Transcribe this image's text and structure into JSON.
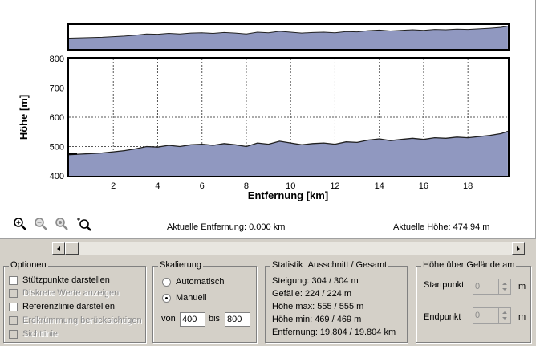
{
  "chart_data": [
    {
      "type": "area",
      "role": "overview",
      "x": [
        0,
        0.5,
        1,
        1.5,
        2,
        2.5,
        3,
        3.5,
        4,
        4.5,
        5,
        5.5,
        6,
        6.5,
        7,
        7.5,
        8,
        8.5,
        9,
        9.5,
        10,
        10.5,
        11,
        11.5,
        12,
        12.5,
        13,
        13.5,
        14,
        14.5,
        15,
        15.5,
        16,
        16.5,
        17,
        17.5,
        18,
        18.5,
        19,
        19.5,
        19.8
      ],
      "y": [
        472,
        474,
        476,
        478,
        482,
        486,
        492,
        500,
        498,
        504,
        500,
        506,
        508,
        504,
        510,
        506,
        500,
        512,
        508,
        518,
        512,
        506,
        510,
        512,
        508,
        516,
        514,
        522,
        526,
        520,
        524,
        528,
        524,
        530,
        528,
        532,
        530,
        534,
        538,
        544,
        552
      ],
      "ylim": [
        400,
        560
      ],
      "xlim": [
        0,
        19.804
      ]
    },
    {
      "type": "area",
      "role": "main",
      "xlabel": "Entfernung [km]",
      "ylabel": "Höhe [m]",
      "x": [
        0,
        0.5,
        1,
        1.5,
        2,
        2.5,
        3,
        3.5,
        4,
        4.5,
        5,
        5.5,
        6,
        6.5,
        7,
        7.5,
        8,
        8.5,
        9,
        9.5,
        10,
        10.5,
        11,
        11.5,
        12,
        12.5,
        13,
        13.5,
        14,
        14.5,
        15,
        15.5,
        16,
        16.5,
        17,
        17.5,
        18,
        18.5,
        19,
        19.5,
        19.8
      ],
      "y": [
        472,
        474,
        476,
        478,
        482,
        486,
        492,
        500,
        498,
        504,
        500,
        506,
        508,
        504,
        510,
        506,
        500,
        512,
        508,
        518,
        512,
        506,
        510,
        512,
        508,
        516,
        514,
        522,
        526,
        520,
        524,
        528,
        524,
        530,
        528,
        532,
        530,
        534,
        538,
        544,
        552
      ],
      "xlim": [
        0,
        19.804
      ],
      "ylim": [
        400,
        800
      ],
      "xticks": [
        2,
        4,
        6,
        8,
        10,
        12,
        14,
        16,
        18
      ],
      "yticks": [
        400,
        500,
        600,
        700,
        800
      ],
      "grid": true,
      "reference_line_y": 474.94,
      "fill_color": "#9098c0",
      "line_color": "#202020"
    }
  ],
  "status": {
    "entfernung": "Aktuelle Entfernung: 0.000 km",
    "hoehe": "Aktuelle Höhe: 474.94 m"
  },
  "toolbar": {
    "icons": [
      "zoom-in-icon",
      "zoom-out-icon",
      "zoom-reset-icon",
      "zoom-window-icon"
    ]
  },
  "optionen": {
    "title": "Optionen",
    "items": [
      {
        "label": "Stützpunkte darstellen",
        "enabled": true
      },
      {
        "label": "Diskrete Werte anzeigen",
        "enabled": false
      },
      {
        "label": "Referenzlinie darstellen",
        "enabled": true
      },
      {
        "label": "Erdkrümmung berücksichtigen",
        "enabled": false
      },
      {
        "label": "Sichtlinie",
        "enabled": false
      }
    ]
  },
  "skalierung": {
    "title": "Skalierung",
    "auto_label": "Automatisch",
    "manual_label": "Manuell",
    "selected": "Manuell",
    "von_label": "von",
    "von_value": "400",
    "bis_label": "bis",
    "bis_value": "800"
  },
  "statistik": {
    "title": "Statistik",
    "subtitle": "Ausschnitt / Gesamt",
    "lines": [
      "Steigung: 304 / 304 m",
      "Gefälle: 224 / 224 m",
      "Höhe max: 555 / 555 m",
      "Höhe min: 469 / 469 m",
      "Entfernung: 19.804 / 19.804 km"
    ]
  },
  "gelaende": {
    "title": "Höhe über Gelände am",
    "start_label": "Startpunkt",
    "start_value": "0",
    "start_unit": "m",
    "end_label": "Endpunkt",
    "end_value": "0",
    "end_unit": "m"
  }
}
